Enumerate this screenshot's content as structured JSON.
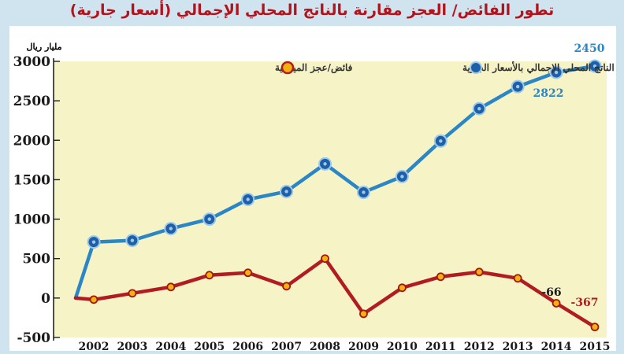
{
  "title": "تطور الفائض/ العجز مقارنة بالناتج المحلي الإجمالي (أسعار جارية)",
  "colors": {
    "background": "#cfe4ef",
    "plot_bg": "#f6f3c7",
    "gdp_line": "#2b86c5",
    "balance_line": "#b11c22",
    "gdp_marker": "#1f5fa8",
    "balance_marker": "#f2b10f",
    "title": "#b5121b"
  },
  "chart_data": {
    "type": "line",
    "title": "تطور الفائض/ العجز مقارنة بالناتج المحلي الإجمالي (أسعار جارية)",
    "ylabel": "مليار ريال",
    "xlabel": "",
    "ylim": [
      -500,
      3000
    ],
    "yticks": [
      "3000",
      "2500",
      "2000",
      "1500",
      "1000",
      "500",
      "0",
      "-500"
    ],
    "x": [
      "2002",
      "2003",
      "2004",
      "2005",
      "2006",
      "2007",
      "2008",
      "2009",
      "2010",
      "2011",
      "2012",
      "2013",
      "2014",
      "2015"
    ],
    "legend_position": "top",
    "series": [
      {
        "name": "الناتج المحلي الإجمالي بالأسعار الجارية",
        "values": [
          710,
          730,
          880,
          1000,
          1250,
          1350,
          1700,
          1340,
          1540,
          1990,
          2400,
          2680,
          2860,
          2940
        ]
      },
      {
        "name": "فائض/عجز الميزانية",
        "values": [
          -20,
          60,
          140,
          290,
          320,
          150,
          500,
          -200,
          130,
          270,
          330,
          250,
          -66,
          -367
        ]
      }
    ],
    "annotations": [
      "2450",
      "2822",
      "-66",
      "-367"
    ]
  }
}
